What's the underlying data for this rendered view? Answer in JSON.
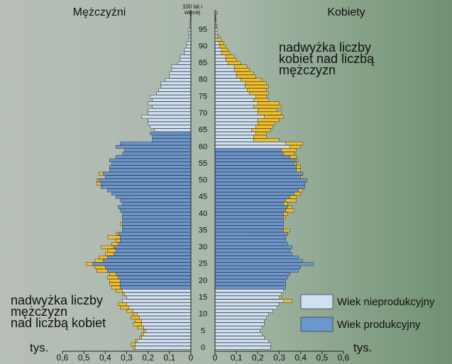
{
  "chart_data": {
    "type": "pyramid",
    "categories": [
      "0",
      null,
      null,
      null,
      null,
      "5",
      null,
      null,
      null,
      null,
      "10",
      null,
      null,
      null,
      null,
      "15",
      null,
      null,
      null,
      null,
      "20",
      null,
      null,
      null,
      null,
      "25",
      null,
      null,
      null,
      null,
      "30",
      null,
      null,
      null,
      null,
      "35",
      null,
      null,
      null,
      null,
      "40",
      null,
      null,
      null,
      null,
      "45",
      null,
      null,
      null,
      null,
      "50",
      null,
      null,
      null,
      null,
      "55",
      null,
      null,
      null,
      null,
      "60",
      null,
      null,
      null,
      null,
      "65",
      null,
      null,
      null,
      null,
      "70",
      null,
      null,
      null,
      null,
      "75",
      null,
      null,
      null,
      null,
      "80",
      null,
      null,
      null,
      null,
      "85",
      null,
      null,
      null,
      null,
      "90",
      null,
      null,
      null,
      null,
      "95",
      null,
      null,
      null,
      null,
      "100 lat i więcej"
    ],
    "series": [
      {
        "name": "Mężczyźni",
        "productive": [
          18,
          64
        ],
        "values": [
          0.27,
          0.28,
          0.26,
          0.24,
          0.23,
          0.22,
          0.25,
          0.27,
          0.26,
          0.28,
          0.27,
          0.3,
          0.33,
          0.34,
          0.32,
          0.3,
          0.32,
          0.35,
          0.37,
          0.38,
          0.38,
          0.39,
          0.38,
          0.44,
          0.45,
          0.49,
          0.45,
          0.43,
          0.4,
          0.39,
          0.42,
          0.37,
          0.35,
          0.39,
          0.35,
          0.32,
          0.32,
          0.33,
          0.32,
          0.32,
          0.32,
          0.33,
          0.34,
          0.32,
          0.33,
          0.35,
          0.37,
          0.39,
          0.42,
          0.44,
          0.44,
          0.4,
          0.43,
          0.38,
          0.38,
          0.37,
          0.38,
          0.35,
          0.32,
          0.31,
          0.35,
          0.33,
          0.18,
          0.18,
          0.19,
          0.17,
          0.19,
          0.2,
          0.2,
          0.23,
          0.2,
          0.2,
          0.18,
          0.2,
          0.18,
          0.19,
          0.16,
          0.15,
          0.14,
          0.14,
          0.12,
          0.1,
          0.1,
          0.09,
          0.09,
          0.06,
          0.05,
          0.05,
          0.03,
          0.03,
          0.02,
          0.02,
          0.01,
          0.01,
          0.01,
          0.01,
          0.005,
          0.005,
          0.003,
          0.002,
          0.005
        ]
      },
      {
        "name": "Kobiety",
        "productive": [
          18,
          59
        ],
        "values": [
          0.26,
          0.26,
          0.25,
          0.23,
          0.22,
          0.21,
          0.22,
          0.23,
          0.23,
          0.24,
          0.25,
          0.27,
          0.29,
          0.3,
          0.36,
          0.31,
          0.31,
          0.32,
          0.33,
          0.33,
          0.33,
          0.34,
          0.35,
          0.39,
          0.4,
          0.46,
          0.41,
          0.39,
          0.36,
          0.35,
          0.36,
          0.34,
          0.33,
          0.33,
          0.34,
          0.35,
          0.32,
          0.32,
          0.32,
          0.33,
          0.34,
          0.37,
          0.36,
          0.34,
          0.38,
          0.38,
          0.4,
          0.41,
          0.42,
          0.42,
          0.43,
          0.41,
          0.41,
          0.4,
          0.4,
          0.38,
          0.39,
          0.38,
          0.37,
          0.38,
          0.4,
          0.41,
          0.3,
          0.24,
          0.24,
          0.26,
          0.27,
          0.28,
          0.3,
          0.32,
          0.31,
          0.29,
          0.31,
          0.3,
          0.25,
          0.24,
          0.25,
          0.24,
          0.25,
          0.24,
          0.22,
          0.19,
          0.18,
          0.16,
          0.15,
          0.12,
          0.1,
          0.09,
          0.07,
          0.06,
          0.05,
          0.04,
          0.03,
          0.02,
          0.01,
          0.01,
          0.01,
          0.005,
          0.005,
          0.003,
          0.01
        ]
      }
    ],
    "excess_color": "#f2c029",
    "legend": [
      {
        "name": "Wiek nieprodukcyjny",
        "color": "#cfe0f3"
      },
      {
        "name": "Wiek produkcyjny",
        "color": "#6b97d0"
      }
    ],
    "xlim": [
      0,
      0.6
    ],
    "xticks": [
      {
        "value": 0.6,
        "label": "0,6"
      },
      {
        "value": 0.5,
        "label": "0,5"
      },
      {
        "value": 0.4,
        "label": "0,4"
      },
      {
        "value": 0.3,
        "label": "0,3"
      },
      {
        "value": 0.2,
        "label": "0,2"
      },
      {
        "value": 0.1,
        "label": "0,1"
      },
      0
    ],
    "x_unit": "tys.",
    "annotations": [
      {
        "lines": [
          "nadwyżka liczby",
          "kobiet nad liczbą",
          "mężczyzn"
        ]
      },
      {
        "lines": [
          "nadwyżka liczby",
          "mężczyzn",
          "nad liczbą kobiet"
        ]
      }
    ]
  }
}
